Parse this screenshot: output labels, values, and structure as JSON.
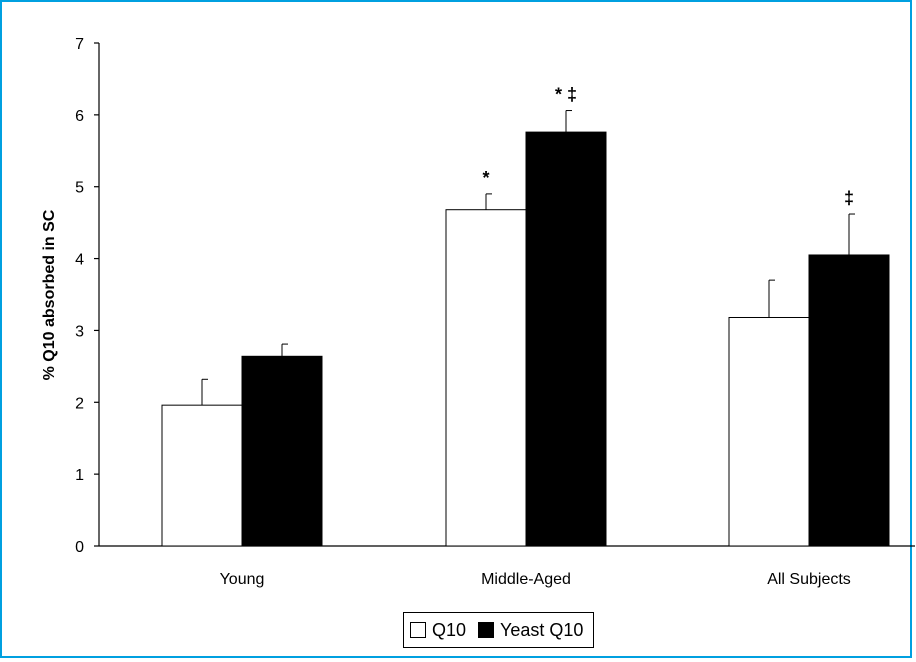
{
  "chart_data": {
    "type": "bar",
    "title": "",
    "xlabel": "",
    "ylabel": "% Q10 absorbed in SC",
    "ylim": [
      0,
      7
    ],
    "yticks": [
      0,
      1,
      2,
      3,
      4,
      5,
      6,
      7
    ],
    "categories": [
      "Young",
      "Middle-Aged",
      "All Subjects"
    ],
    "series": [
      {
        "name": "Q10",
        "values": [
          1.96,
          4.68,
          3.18
        ],
        "errors": [
          0.36,
          0.22,
          0.52
        ],
        "color": "#ffffff",
        "markers": [
          "",
          "*",
          ""
        ]
      },
      {
        "name": "Yeast Q10",
        "values": [
          2.64,
          5.76,
          4.05
        ],
        "errors": [
          0.17,
          0.3,
          0.57
        ],
        "color": "#000000",
        "markers": [
          "",
          "* ‡",
          "‡"
        ]
      }
    ],
    "legend": "bottom-center",
    "grid": false
  },
  "colors": {
    "frame": "#00a0e0"
  }
}
